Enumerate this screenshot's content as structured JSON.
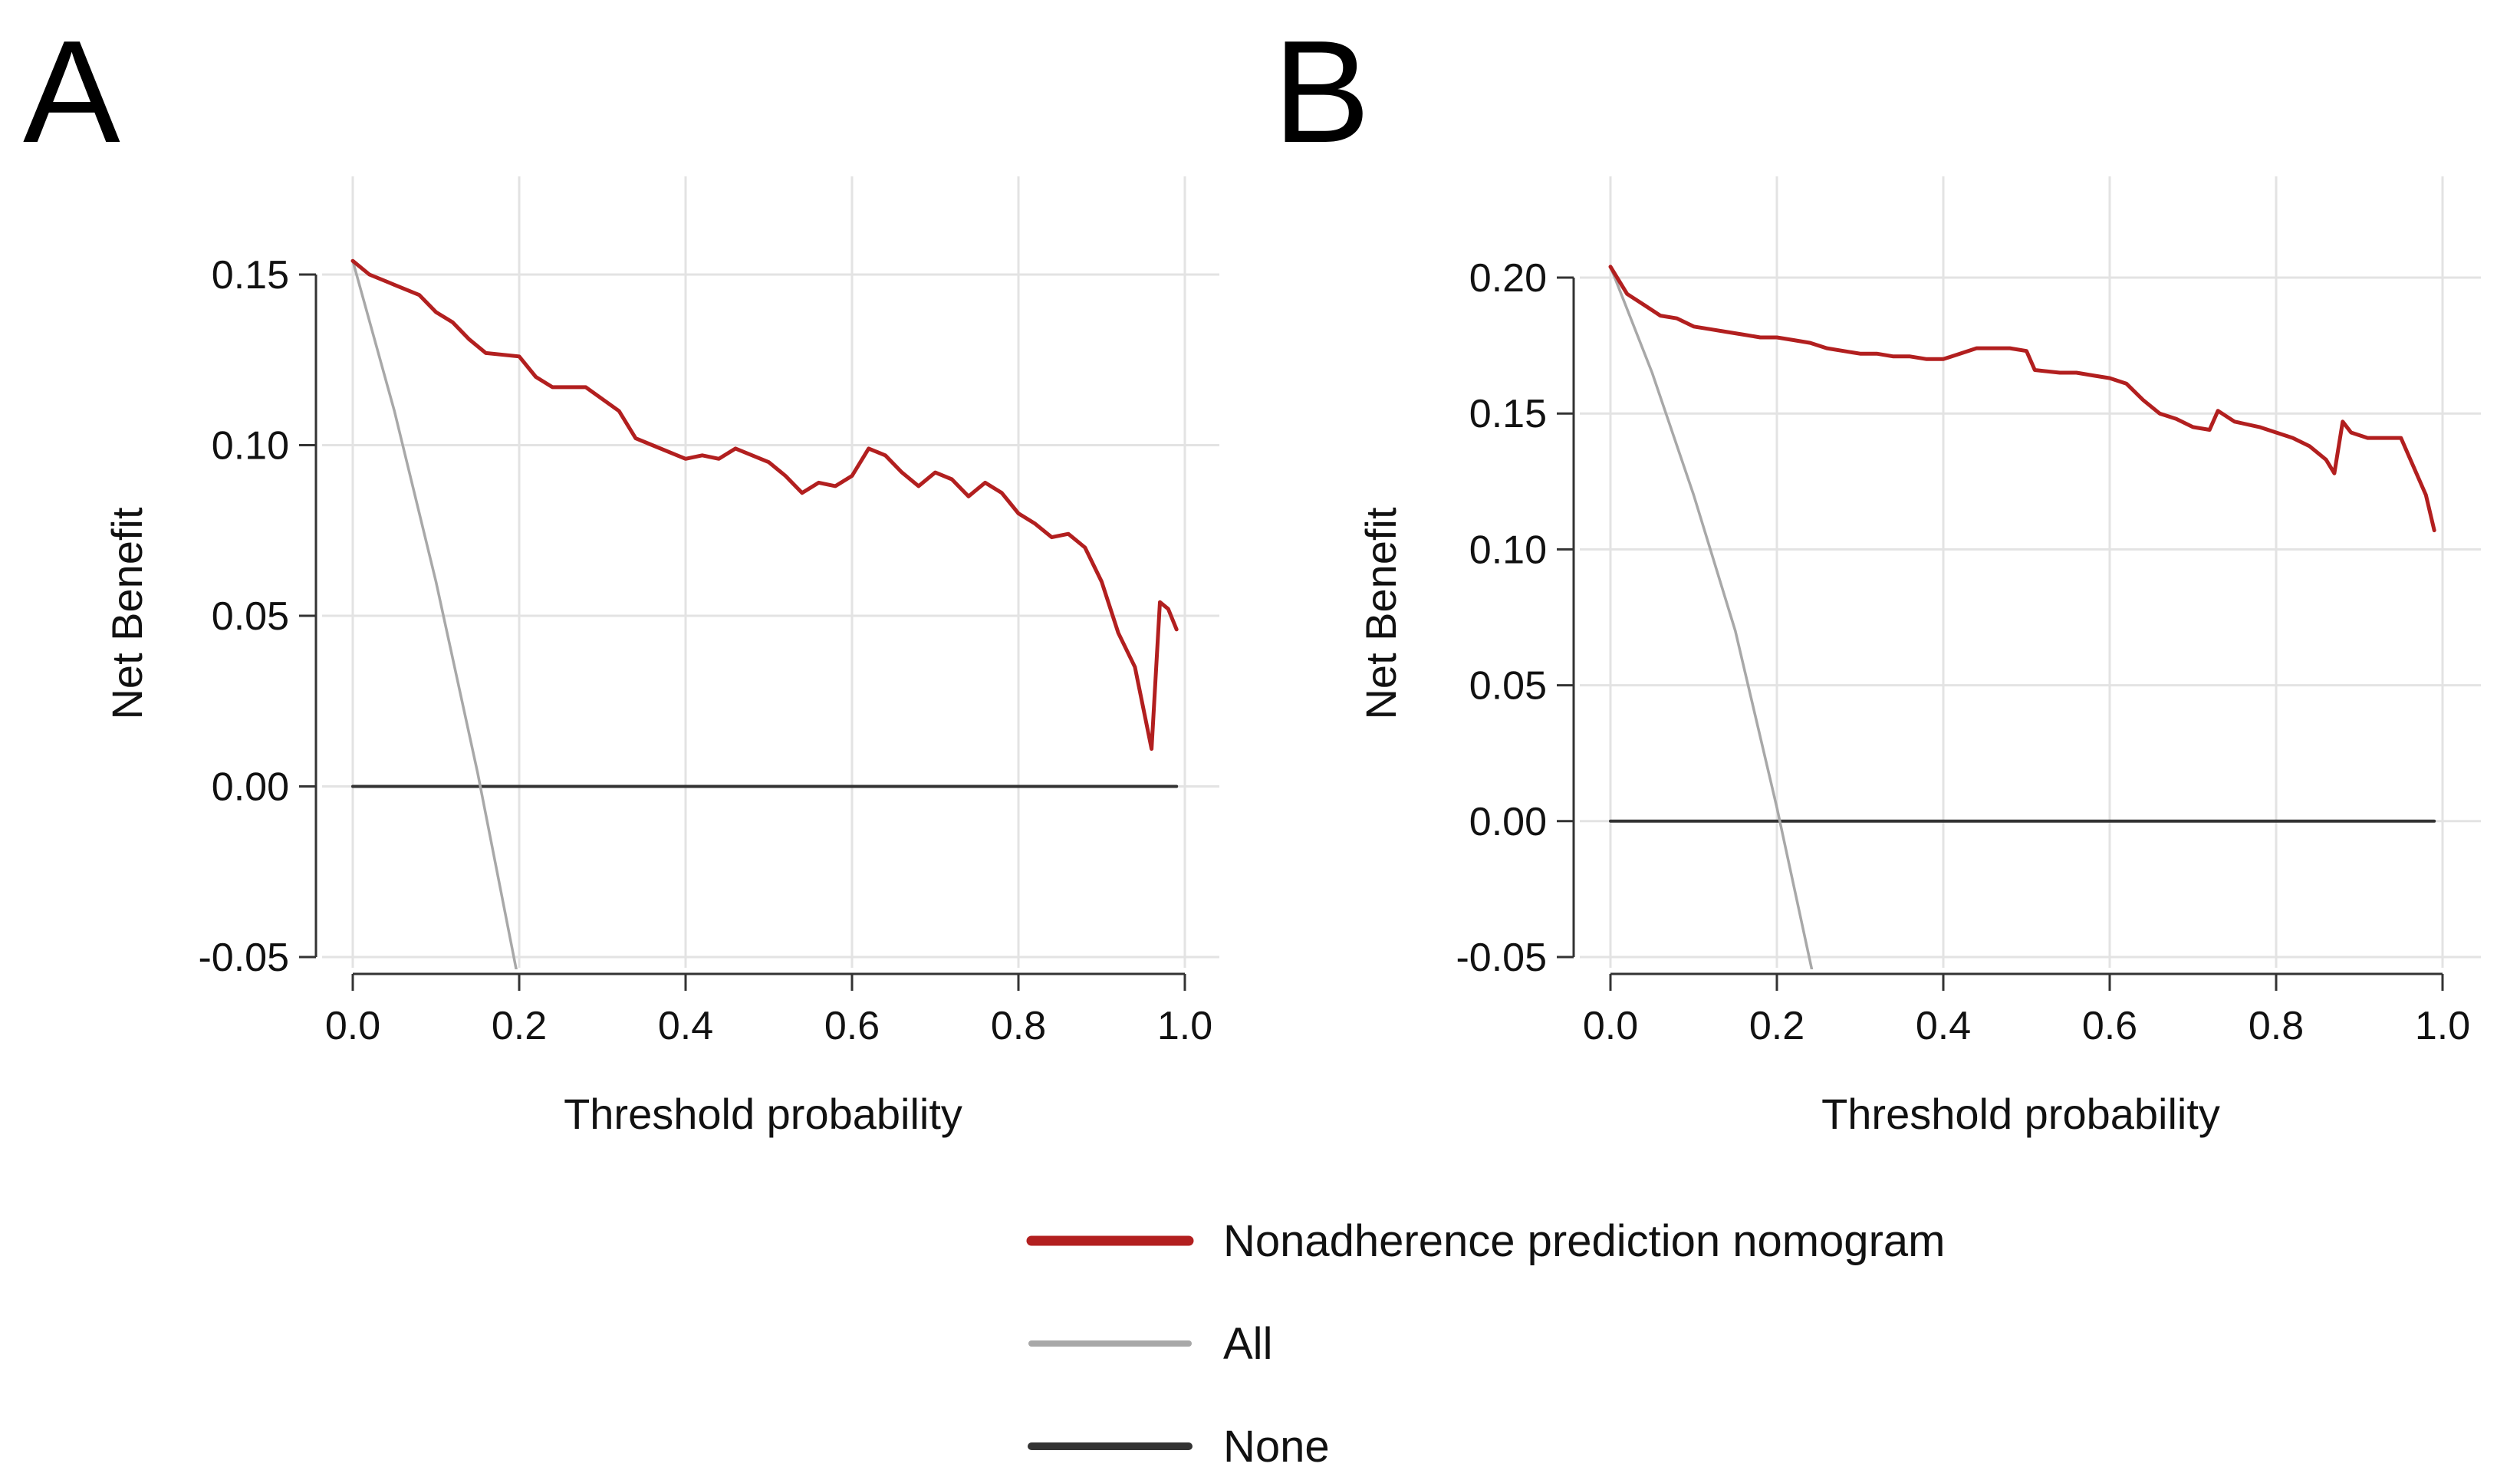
{
  "legend": [
    {
      "label": "Nonadherence prediction nomogram",
      "color": "#b21f1f",
      "key": "model"
    },
    {
      "label": "All",
      "color": "#a8a8a8",
      "key": "all"
    },
    {
      "label": "None",
      "color": "#333333",
      "key": "none"
    }
  ],
  "chart_data": [
    {
      "panel": "A",
      "type": "line",
      "title": "",
      "xlabel": "Threshold probability",
      "ylabel": "Net Benefit",
      "xlim": [
        0.0,
        1.0
      ],
      "ylim": [
        -0.05,
        0.15
      ],
      "xticks": [
        "0.0",
        "0.2",
        "0.4",
        "0.6",
        "0.8",
        "1.0"
      ],
      "yticks": [
        "-0.05",
        "0.00",
        "0.05",
        "0.10",
        "0.15"
      ],
      "grid": true,
      "series": [
        {
          "key": "model",
          "color": "#b21f1f",
          "x": [
            0.0,
            0.02,
            0.05,
            0.08,
            0.1,
            0.12,
            0.14,
            0.16,
            0.2,
            0.22,
            0.24,
            0.28,
            0.32,
            0.34,
            0.36,
            0.4,
            0.42,
            0.44,
            0.46,
            0.5,
            0.52,
            0.54,
            0.56,
            0.58,
            0.6,
            0.62,
            0.64,
            0.66,
            0.68,
            0.7,
            0.72,
            0.74,
            0.76,
            0.78,
            0.8,
            0.82,
            0.84,
            0.86,
            0.88,
            0.9,
            0.92,
            0.94,
            0.96,
            0.97,
            0.98,
            0.99
          ],
          "y": [
            0.154,
            0.15,
            0.147,
            0.144,
            0.139,
            0.136,
            0.131,
            0.127,
            0.126,
            0.12,
            0.117,
            0.117,
            0.11,
            0.102,
            0.1,
            0.096,
            0.097,
            0.096,
            0.099,
            0.095,
            0.091,
            0.086,
            0.089,
            0.088,
            0.091,
            0.099,
            0.097,
            0.092,
            0.088,
            0.092,
            0.09,
            0.085,
            0.089,
            0.086,
            0.08,
            0.077,
            0.073,
            0.074,
            0.07,
            0.06,
            0.045,
            0.035,
            0.011,
            0.054,
            0.052,
            0.046
          ]
        },
        {
          "key": "all",
          "color": "#a8a8a8",
          "x": [
            0.0,
            0.05,
            0.1,
            0.15,
            0.2
          ],
          "y": [
            0.154,
            0.11,
            0.06,
            0.004,
            -0.058
          ]
        },
        {
          "key": "none",
          "color": "#333333",
          "x": [
            0.0,
            0.99
          ],
          "y": [
            0.0,
            0.0
          ]
        }
      ]
    },
    {
      "panel": "B",
      "type": "line",
      "title": "",
      "xlabel": "Threshold probability",
      "ylabel": "Net Benefit",
      "xlim": [
        0.0,
        1.0
      ],
      "ylim": [
        -0.05,
        0.2
      ],
      "xticks": [
        "0.0",
        "0.2",
        "0.4",
        "0.6",
        "0.8",
        "1.0"
      ],
      "yticks": [
        "-0.05",
        "0.00",
        "0.05",
        "0.10",
        "0.15",
        "0.20"
      ],
      "grid": true,
      "series": [
        {
          "key": "model",
          "color": "#b21f1f",
          "x": [
            0.0,
            0.02,
            0.04,
            0.06,
            0.08,
            0.1,
            0.12,
            0.14,
            0.16,
            0.18,
            0.2,
            0.22,
            0.24,
            0.26,
            0.28,
            0.3,
            0.32,
            0.34,
            0.36,
            0.38,
            0.4,
            0.42,
            0.44,
            0.46,
            0.48,
            0.5,
            0.51,
            0.54,
            0.56,
            0.58,
            0.6,
            0.62,
            0.64,
            0.66,
            0.68,
            0.7,
            0.72,
            0.73,
            0.75,
            0.78,
            0.8,
            0.82,
            0.84,
            0.86,
            0.87,
            0.88,
            0.89,
            0.91,
            0.93,
            0.95,
            0.96,
            0.98,
            0.99
          ],
          "y": [
            0.204,
            0.194,
            0.19,
            0.186,
            0.185,
            0.182,
            0.181,
            0.18,
            0.179,
            0.178,
            0.178,
            0.177,
            0.176,
            0.174,
            0.173,
            0.172,
            0.172,
            0.171,
            0.171,
            0.17,
            0.17,
            0.172,
            0.174,
            0.174,
            0.174,
            0.173,
            0.166,
            0.165,
            0.165,
            0.164,
            0.163,
            0.161,
            0.155,
            0.15,
            0.148,
            0.145,
            0.144,
            0.151,
            0.147,
            0.145,
            0.143,
            0.141,
            0.138,
            0.133,
            0.128,
            0.147,
            0.143,
            0.141,
            0.141,
            0.141,
            0.134,
            0.12,
            0.107
          ]
        },
        {
          "key": "all",
          "color": "#a8a8a8",
          "x": [
            0.0,
            0.05,
            0.1,
            0.15,
            0.2,
            0.25
          ],
          "y": [
            0.204,
            0.165,
            0.12,
            0.07,
            0.005,
            -0.066
          ]
        },
        {
          "key": "none",
          "color": "#333333",
          "x": [
            0.0,
            0.99
          ],
          "y": [
            0.0,
            0.0
          ]
        }
      ]
    }
  ]
}
